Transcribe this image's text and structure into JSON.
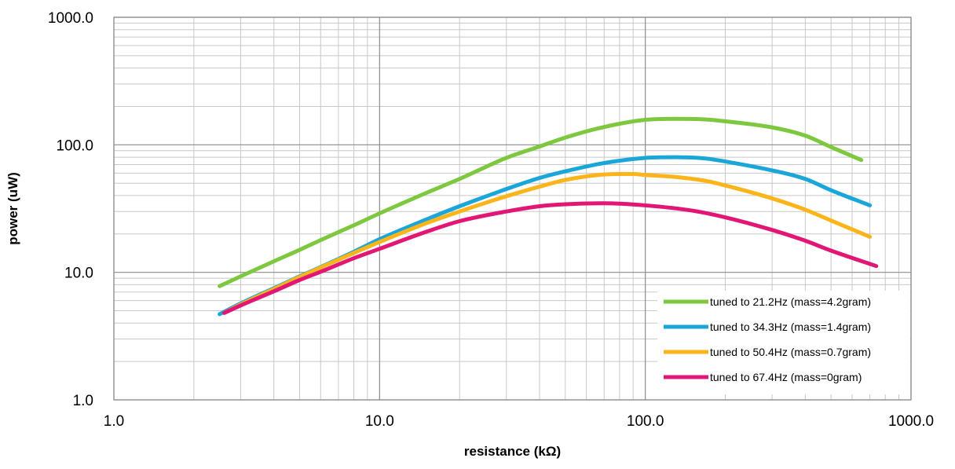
{
  "chart_data": {
    "type": "line",
    "title": "",
    "xlabel": "resistance (kΩ)",
    "ylabel": "power (uW)",
    "xscale": "log",
    "yscale": "log",
    "xlim": [
      1,
      1000
    ],
    "ylim": [
      1,
      1000
    ],
    "grid": true,
    "legend_position": "bottom-right",
    "x_tick_labels": [
      "1.0",
      "10.0",
      "100.0",
      "1000.0"
    ],
    "y_tick_labels": [
      "1.0",
      "10.0",
      "100.0",
      "1000.0"
    ],
    "series": [
      {
        "name": "tuned to 21.2Hz (mass=4.2gram)",
        "color": "#7dc83e",
        "x": [
          2.5,
          3,
          4,
          5,
          6,
          8,
          10,
          15,
          20,
          30,
          40,
          50,
          70,
          100,
          130,
          170,
          200,
          300,
          400,
          500,
          650
        ],
        "y": [
          7.8,
          9.3,
          12.2,
          15,
          17.9,
          23.4,
          29,
          42,
          54,
          79,
          97,
          114,
          138,
          157,
          160,
          158,
          153,
          137,
          118,
          96,
          76
        ]
      },
      {
        "name": "tuned to 34.3Hz (mass=1.4gram)",
        "color": "#1ba6d9",
        "x": [
          2.5,
          3,
          4,
          5,
          6,
          8,
          10,
          15,
          20,
          30,
          40,
          50,
          70,
          100,
          130,
          170,
          200,
          300,
          400,
          500,
          700
        ],
        "y": [
          4.7,
          5.7,
          7.5,
          9.3,
          11,
          14.5,
          18.2,
          26,
          33,
          45,
          55,
          62,
          72,
          79,
          80,
          78,
          74,
          63,
          54,
          44,
          33.5
        ]
      },
      {
        "name": "tuned to 50.4Hz (mass=0.7gram)",
        "color": "#fbb41a",
        "x": [
          2.6,
          3,
          4,
          5,
          6,
          8,
          10,
          15,
          20,
          30,
          40,
          50,
          70,
          90,
          100,
          130,
          170,
          200,
          300,
          400,
          500,
          700
        ],
        "y": [
          4.8,
          5.6,
          7.4,
          9.2,
          10.9,
          14.2,
          17.3,
          24.3,
          30,
          39.5,
          47,
          53,
          58.5,
          59,
          58,
          56,
          52,
          48,
          38,
          31,
          25.5,
          19
        ]
      },
      {
        "name": "tuned to 67.4Hz (mass=0gram)",
        "color": "#e21775",
        "x": [
          2.6,
          3,
          4,
          5,
          6,
          8,
          10,
          15,
          20,
          30,
          40,
          50,
          70,
          100,
          150,
          200,
          300,
          400,
          500,
          740
        ],
        "y": [
          4.8,
          5.5,
          7.1,
          8.7,
          10.1,
          12.9,
          15.3,
          20.8,
          25.2,
          30,
          33,
          34.2,
          34.8,
          33.5,
          30.5,
          27,
          21.5,
          17.7,
          14.8,
          11.2
        ]
      }
    ]
  }
}
